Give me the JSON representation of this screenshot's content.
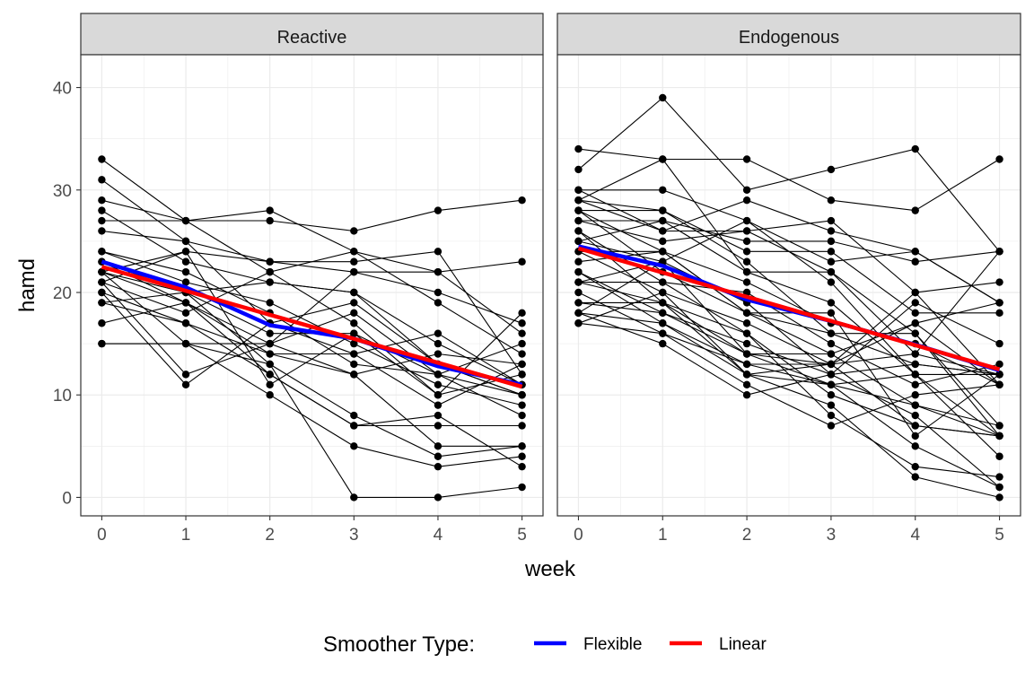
{
  "chart_data": {
    "type": "line",
    "panels": [
      "Reactive",
      "Endogenous"
    ],
    "xlabel": "week",
    "ylabel": "hamd",
    "x_ticks": [
      0,
      1,
      2,
      3,
      4,
      5
    ],
    "y_ticks": [
      0,
      10,
      20,
      30,
      40
    ],
    "xlim": [
      -0.25,
      5.25
    ],
    "ylim": [
      -1.8,
      43.2
    ],
    "grid": true,
    "legend": {
      "title": "Smoother Type:",
      "position": "bottom",
      "entries": [
        {
          "name": "Flexible",
          "color": "#0000ff"
        },
        {
          "name": "Linear",
          "color": "#ff0000"
        }
      ]
    },
    "point_color": "#000000",
    "subjects": {
      "Reactive": [
        [
          33,
          27,
          22,
          24,
          22,
          16
        ],
        [
          31,
          25,
          23,
          23,
          24,
          12
        ],
        [
          29,
          27,
          27,
          26,
          28,
          29
        ],
        [
          28,
          23,
          21,
          20,
          15,
          11
        ],
        [
          27,
          27,
          28,
          24,
          19,
          14
        ],
        [
          26,
          25,
          17,
          19,
          13,
          10
        ],
        [
          24,
          22,
          18,
          13,
          12,
          10
        ],
        [
          24,
          21,
          19,
          15,
          11,
          9
        ],
        [
          23,
          19,
          15,
          18,
          12,
          8
        ],
        [
          22,
          15,
          15,
          22,
          20,
          17
        ],
        [
          22,
          24,
          23,
          22,
          22,
          23
        ],
        [
          22,
          20,
          16,
          16,
          10,
          18
        ],
        [
          21,
          12,
          15,
          12,
          14,
          13
        ],
        [
          21,
          18,
          22,
          17,
          10,
          12
        ],
        [
          20,
          11,
          17,
          14,
          16,
          11
        ],
        [
          19,
          17,
          14,
          14,
          9,
          13
        ],
        [
          19,
          20,
          13,
          8,
          4,
          5
        ],
        [
          17,
          19,
          12,
          7,
          7,
          7
        ],
        [
          15,
          15,
          13,
          0,
          0,
          1
        ],
        [
          15,
          15,
          10,
          5,
          3,
          4
        ],
        [
          22,
          19,
          14,
          12,
          5,
          5
        ],
        [
          20,
          17,
          12,
          7,
          8,
          3
        ],
        [
          21,
          24,
          11,
          16,
          12,
          15
        ],
        [
          23,
          20,
          21,
          20,
          13,
          10
        ]
      ],
      "Endogenous": [
        [
          34,
          33,
          33,
          29,
          28,
          33
        ],
        [
          32,
          39,
          30,
          32,
          34,
          24
        ],
        [
          30,
          30,
          27,
          23,
          24,
          19
        ],
        [
          30,
          26,
          26,
          27,
          20,
          21
        ],
        [
          29,
          26,
          29,
          26,
          24,
          19
        ],
        [
          29,
          28,
          24,
          24,
          18,
          18
        ],
        [
          28,
          24,
          21,
          17,
          15,
          11
        ],
        [
          28,
          22,
          18,
          14,
          9,
          7
        ],
        [
          27,
          25,
          26,
          22,
          14,
          12
        ],
        [
          27,
          27,
          22,
          19,
          12,
          4
        ],
        [
          26,
          21,
          20,
          15,
          11,
          13
        ],
        [
          25,
          23,
          27,
          21,
          12,
          6
        ],
        [
          25,
          27,
          25,
          25,
          23,
          24
        ],
        [
          24,
          24,
          18,
          16,
          13,
          12
        ],
        [
          24,
          20,
          17,
          13,
          7,
          6
        ],
        [
          22,
          18,
          14,
          11,
          5,
          1
        ],
        [
          21,
          19,
          12,
          9,
          2,
          0
        ],
        [
          21,
          23,
          19,
          12,
          8,
          1
        ],
        [
          21,
          21,
          16,
          8,
          3,
          2
        ],
        [
          20,
          16,
          11,
          7,
          10,
          11
        ],
        [
          19,
          18,
          15,
          12,
          13,
          12
        ],
        [
          19,
          19,
          16,
          10,
          7,
          6
        ],
        [
          18,
          17,
          13,
          13,
          17,
          19
        ],
        [
          18,
          15,
          10,
          12,
          19,
          15
        ],
        [
          18,
          23,
          14,
          14,
          17,
          11
        ],
        [
          17,
          16,
          13,
          11,
          12,
          12
        ],
        [
          17,
          20,
          12,
          13,
          14,
          24
        ],
        [
          29,
          33,
          22,
          22,
          16,
          7
        ],
        [
          26,
          19,
          14,
          13,
          20,
          11
        ],
        [
          23,
          24,
          18,
          18,
          6,
          12
        ],
        [
          28,
          28,
          23,
          16,
          16,
          6
        ],
        [
          22,
          17,
          12,
          11,
          9,
          6
        ]
      ]
    },
    "smoothers": {
      "Reactive": {
        "Flexible": {
          "x": [
            0,
            1,
            2,
            3,
            4,
            5
          ],
          "y": [
            23.0,
            20.5,
            16.8,
            15.5,
            12.8,
            11.0
          ]
        },
        "Linear": {
          "x": [
            0,
            5
          ],
          "y": [
            22.5,
            10.8
          ]
        }
      },
      "Endogenous": {
        "Flexible": {
          "x": [
            0,
            1,
            2,
            3,
            4,
            5
          ],
          "y": [
            24.5,
            22.6,
            19.3,
            17.2,
            14.9,
            12.4
          ]
        },
        "Linear": {
          "x": [
            0,
            5
          ],
          "y": [
            24.3,
            12.5
          ]
        }
      }
    }
  }
}
